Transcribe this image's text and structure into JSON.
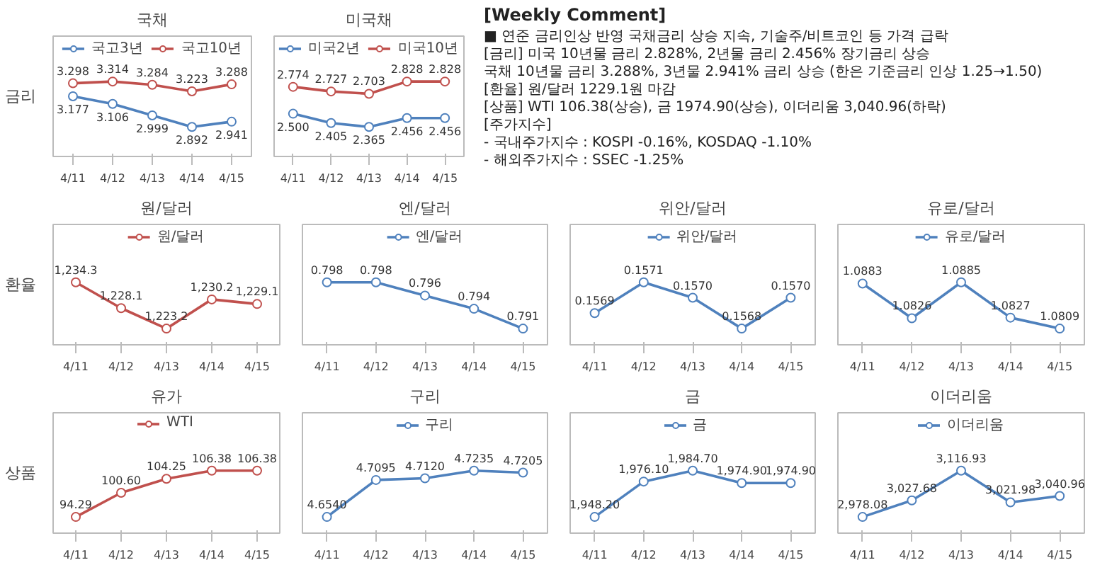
{
  "chart_data": [
    {
      "type": "line",
      "title": "국채",
      "ylabel": "금리",
      "categories": [
        "4/11",
        "4/12",
        "4/13",
        "4/14",
        "4/15"
      ],
      "legend": "top",
      "marker": "circle",
      "tick_labels": "x",
      "series": [
        {
          "name": "국고3년",
          "color": "#4f81bd",
          "values": [
            3.177,
            3.106,
            2.999,
            2.892,
            2.941
          ],
          "value_labels": [
            "3.177",
            "3.106",
            "2.999",
            "2.892",
            "2.941"
          ]
        },
        {
          "name": "국고10년",
          "color": "#c0504d",
          "values": [
            3.298,
            3.314,
            3.284,
            3.223,
            3.288
          ],
          "value_labels": [
            "3.298",
            "3.314",
            "3.284",
            "3.223",
            "3.288"
          ]
        }
      ]
    },
    {
      "type": "line",
      "title": "미국채",
      "categories": [
        "4/11",
        "4/12",
        "4/13",
        "4/14",
        "4/15"
      ],
      "legend": "top",
      "marker": "circle",
      "tick_labels": "x",
      "series": [
        {
          "name": "미국2년",
          "color": "#4f81bd",
          "values": [
            2.5,
            2.405,
            2.365,
            2.456,
            2.456
          ],
          "value_labels": [
            "2.500",
            "2.405",
            "2.365",
            "2.456",
            "2.456"
          ]
        },
        {
          "name": "미국10년",
          "color": "#c0504d",
          "values": [
            2.774,
            2.727,
            2.703,
            2.828,
            2.828
          ],
          "value_labels": [
            "2.774",
            "2.727",
            "2.703",
            "2.828",
            "2.828"
          ]
        }
      ]
    },
    {
      "type": "other",
      "title": "[Weekly Comment]",
      "annotations": [
        "■ 연준 금리인상 반영 국채금리 상승 지속, 기술주/비트코인 등 가격 급락",
        "[금리] 미국 10년물 금리 2.828%, 2년물 금리 2.456% 장기금리 상승",
        "국채 10년물 금리 3.288%, 3년물 2.941% 금리 상승 (한은 기준금리 인상 1.25→1.50)",
        "[환율] 원/달러 1229.1원 마감",
        "[상품] WTI 106.38(상승), 금 1974.90(상승), 이더리움 3,040.96(하락)",
        "[주가지수]",
        "- 국내주가지수 : KOSPI -0.16%, KOSDAQ -1.10%",
        "- 해외주가지수 : SSEC -1.25%"
      ]
    },
    {
      "type": "line",
      "title": "원/달러",
      "ylabel": "환율",
      "categories": [
        "4/11",
        "4/12",
        "4/13",
        "4/14",
        "4/15"
      ],
      "legend": "top",
      "marker": "circle",
      "tick_labels": "x",
      "series": [
        {
          "name": "원/달러",
          "color": "#c0504d",
          "values": [
            1234.3,
            1228.1,
            1223.2,
            1230.2,
            1229.1
          ],
          "value_labels": [
            "1,234.3",
            "1,228.1",
            "1,223.2",
            "1,230.2",
            "1,229.1"
          ]
        }
      ]
    },
    {
      "type": "line",
      "title": "엔/달러",
      "categories": [
        "4/11",
        "4/12",
        "4/13",
        "4/14",
        "4/15"
      ],
      "legend": "top",
      "marker": "circle",
      "tick_labels": "x",
      "series": [
        {
          "name": "엔/달러",
          "color": "#4f81bd",
          "values": [
            0.798,
            0.798,
            0.796,
            0.794,
            0.791
          ],
          "value_labels": [
            "0.798",
            "0.798",
            "0.796",
            "0.794",
            "0.791"
          ]
        }
      ]
    },
    {
      "type": "line",
      "title": "위안/달러",
      "categories": [
        "4/11",
        "4/12",
        "4/13",
        "4/14",
        "4/15"
      ],
      "legend": "top",
      "marker": "circle",
      "tick_labels": "x",
      "series": [
        {
          "name": "위안/달러",
          "color": "#4f81bd",
          "values": [
            0.1569,
            0.1571,
            0.157,
            0.1568,
            0.157
          ],
          "value_labels": [
            "0.1569",
            "0.1571",
            "0.1570",
            "0.1568",
            "0.1570"
          ]
        }
      ]
    },
    {
      "type": "line",
      "title": "유로/달러",
      "categories": [
        "4/11",
        "4/12",
        "4/13",
        "4/14",
        "4/15"
      ],
      "legend": "top",
      "marker": "circle",
      "tick_labels": "x",
      "series": [
        {
          "name": "유로/달러",
          "color": "#4f81bd",
          "values": [
            1.0883,
            1.0826,
            1.0885,
            1.0827,
            1.0809
          ],
          "value_labels": [
            "1.0883",
            "1.0826",
            "1.0885",
            "1.0827",
            "1.0809"
          ]
        }
      ]
    },
    {
      "type": "line",
      "title": "유가",
      "ylabel": "상품",
      "categories": [
        "4/11",
        "4/12",
        "4/13",
        "4/14",
        "4/15"
      ],
      "legend": "top",
      "marker": "circle",
      "tick_labels": "x",
      "series": [
        {
          "name": "WTI",
          "color": "#c0504d",
          "values": [
            94.29,
            100.6,
            104.25,
            106.38,
            106.38
          ],
          "value_labels": [
            "94.29",
            "100.60",
            "104.25",
            "106.38",
            "106.38"
          ]
        }
      ]
    },
    {
      "type": "line",
      "title": "구리",
      "categories": [
        "4/11",
        "4/12",
        "4/13",
        "4/14",
        "4/15"
      ],
      "legend": "top",
      "marker": "circle",
      "tick_labels": "x",
      "series": [
        {
          "name": "구리",
          "color": "#4f81bd",
          "values": [
            4.654,
            4.7095,
            4.712,
            4.7235,
            4.7205
          ],
          "value_labels": [
            "4.6540",
            "4.7095",
            "4.7120",
            "4.7235",
            "4.7205"
          ]
        }
      ]
    },
    {
      "type": "line",
      "title": "금",
      "categories": [
        "4/11",
        "4/12",
        "4/13",
        "4/14",
        "4/15"
      ],
      "legend": "top",
      "marker": "circle",
      "tick_labels": "x",
      "series": [
        {
          "name": "금",
          "color": "#4f81bd",
          "values": [
            1948.2,
            1976.1,
            1984.7,
            1974.9,
            1974.9
          ],
          "value_labels": [
            "1,948.20",
            "1,976.10",
            "1,984.70",
            "1,974.90",
            "1,974.90"
          ]
        }
      ]
    },
    {
      "type": "line",
      "title": "이더리움",
      "categories": [
        "4/11",
        "4/12",
        "4/13",
        "4/14",
        "4/15"
      ],
      "legend": "top",
      "marker": "circle",
      "tick_labels": "x",
      "series": [
        {
          "name": "이더리움",
          "color": "#4f81bd",
          "values": [
            2978.08,
            3027.68,
            3116.93,
            3021.98,
            3040.96
          ],
          "value_labels": [
            "2,978.08",
            "3,027.68",
            "3,116.93",
            "3,021.98",
            "3,040.96"
          ]
        }
      ]
    }
  ]
}
